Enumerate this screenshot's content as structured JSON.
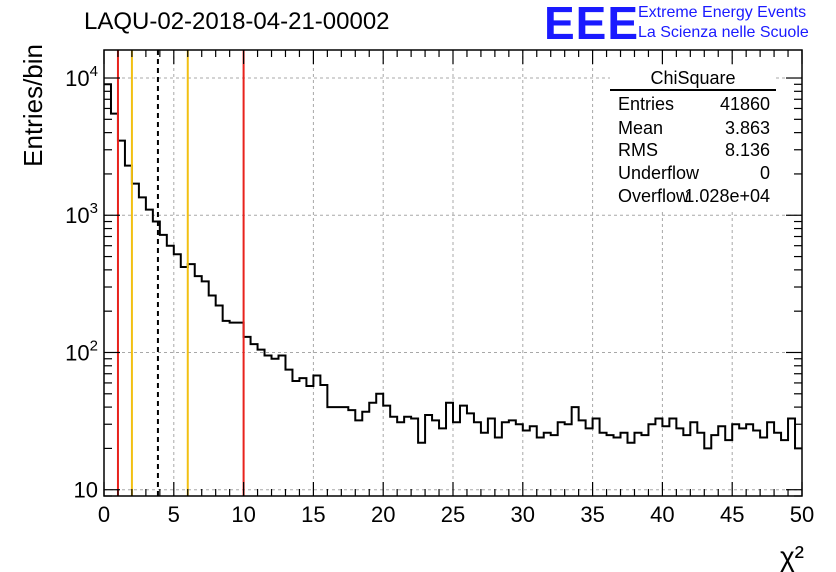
{
  "chart_data": {
    "type": "histogram",
    "title": "LAQU-02-2018-04-21-00002",
    "xlabel": "χ²",
    "ylabel": "Entries/bin",
    "xlim": [
      0,
      50
    ],
    "ylim": [
      9,
      16000
    ],
    "yscale": "log",
    "grid": true,
    "bin_width": 0.5,
    "x_ticks": [
      0,
      5,
      10,
      15,
      20,
      25,
      30,
      35,
      40,
      45,
      50
    ],
    "y_ticks": [
      {
        "value": 10,
        "base": "10",
        "exp": ""
      },
      {
        "value": 100,
        "base": "10",
        "exp": "2"
      },
      {
        "value": 1000,
        "base": "10",
        "exp": "3"
      },
      {
        "value": 10000,
        "base": "10",
        "exp": "4"
      }
    ],
    "counts": [
      9000,
      5500,
      3500,
      2300,
      1700,
      1350,
      1100,
      900,
      720,
      600,
      520,
      420,
      440,
      360,
      330,
      260,
      220,
      170,
      165,
      165,
      130,
      115,
      105,
      95,
      90,
      95,
      75,
      62,
      65,
      57,
      68,
      58,
      40,
      40,
      40,
      38,
      32,
      37,
      43,
      50,
      41,
      34,
      31,
      34,
      33,
      22,
      35,
      32,
      28,
      43,
      31,
      41,
      36,
      31,
      26,
      33,
      24,
      31,
      32,
      30,
      27,
      29,
      24,
      26,
      25,
      31,
      30,
      40,
      32,
      28,
      33,
      26,
      25,
      24,
      26,
      22,
      26,
      25,
      30,
      33,
      29,
      33,
      28,
      25,
      31,
      26,
      20,
      25,
      29,
      23,
      30,
      28,
      30,
      27,
      24,
      31,
      26,
      23,
      33,
      20
    ],
    "vertical_lines": [
      {
        "x": 1,
        "color": "#e8221c",
        "style": "solid"
      },
      {
        "x": 2,
        "color": "#f2c012",
        "style": "solid"
      },
      {
        "x": 3.863,
        "color": "#000000",
        "style": "dashed"
      },
      {
        "x": 6,
        "color": "#f2c012",
        "style": "solid"
      },
      {
        "x": 10,
        "color": "#e8221c",
        "style": "solid"
      }
    ],
    "stats": {
      "title": "ChiSquare",
      "rows": [
        {
          "key": "Entries",
          "value": "41860"
        },
        {
          "key": "Mean",
          "value": "3.863"
        },
        {
          "key": "RMS",
          "value": "8.136"
        },
        {
          "key": "Underflow",
          "value": "0"
        },
        {
          "key": "Overflow",
          "value": "1.028e+04"
        }
      ]
    }
  },
  "logo": {
    "mark": "EEE",
    "line1": "Extreme Energy Events",
    "line2": "La Scienza nelle Scuole"
  }
}
